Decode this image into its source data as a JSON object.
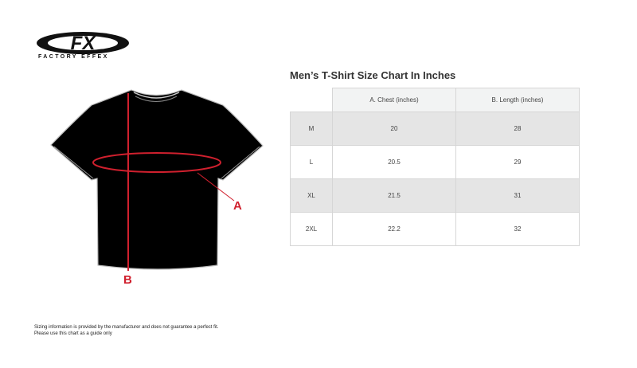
{
  "brand": {
    "logo_text": "FX",
    "name": "FACTORY EFFEX"
  },
  "diagram": {
    "label_a": "A",
    "label_b": "B",
    "accent_color": "#d0202e"
  },
  "chart": {
    "title": "Men’s T-Shirt Size Chart In Inches",
    "headers": [
      "A. Chest (inches)",
      "B. Length (inches)"
    ],
    "rows": [
      {
        "size": "M",
        "chest": "20",
        "length": "28"
      },
      {
        "size": "L",
        "chest": "20.5",
        "length": "29"
      },
      {
        "size": "XL",
        "chest": "21.5",
        "length": "31"
      },
      {
        "size": "2XL",
        "chest": "22.2",
        "length": "32"
      }
    ]
  },
  "disclaimer": {
    "line1": "Sizing information is provided by the manufacturer and does not guarantee a perfect fit.",
    "line2": "Please use this chart as a guide only"
  }
}
